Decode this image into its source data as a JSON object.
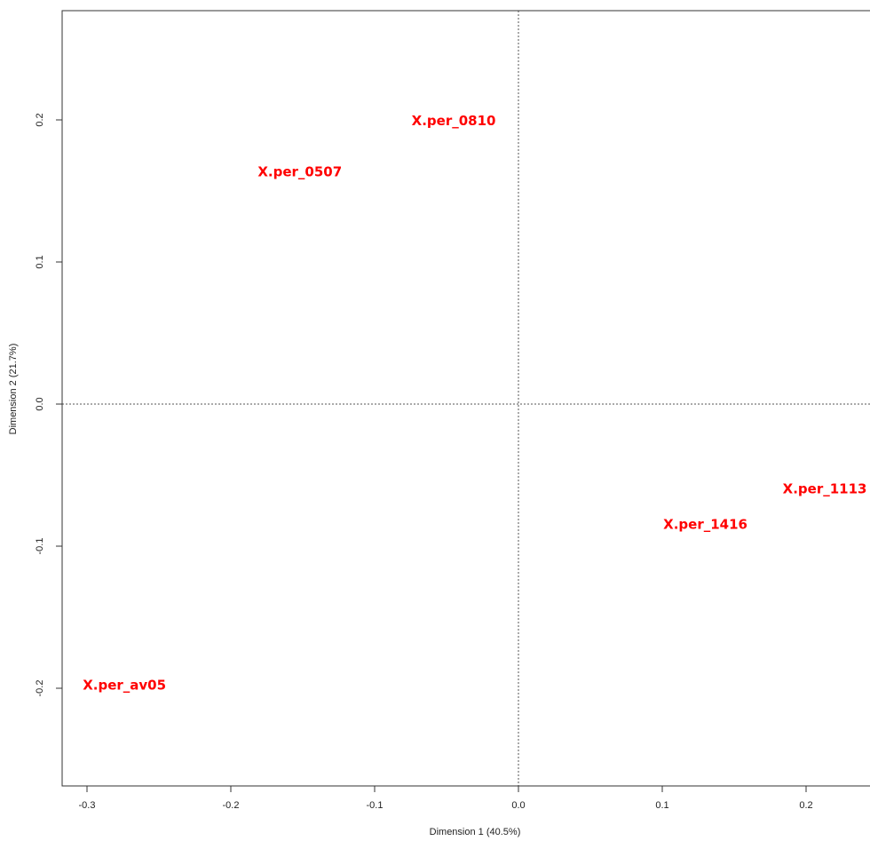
{
  "chart_data": {
    "type": "scatter",
    "title": "",
    "xlabel": "Dimension 1 (40.5%)",
    "ylabel": "Dimension 2 (21.7%)",
    "xlim": [
      -0.32,
      0.245
    ],
    "ylim": [
      -0.268,
      0.276
    ],
    "x_ticks": [
      -0.3,
      -0.2,
      -0.1,
      0.0,
      0.1,
      0.2
    ],
    "x_tick_labels": [
      "-0.3",
      "-0.2",
      "-0.1",
      "0.0",
      "0.1",
      "0.2"
    ],
    "y_ticks": [
      -0.2,
      -0.1,
      0.0,
      0.1,
      0.2
    ],
    "y_tick_labels": [
      "-0.2",
      "-0.1",
      "0.0",
      "0.1",
      "0.2"
    ],
    "reference_lines": {
      "x": 0.0,
      "y": 0.0,
      "style": "dotted"
    },
    "grid": false,
    "label_color": "#ff0000",
    "points": [
      {
        "label": "X.per_0810",
        "x": -0.045,
        "y": 0.199
      },
      {
        "label": "X.per_0507",
        "x": -0.152,
        "y": 0.163
      },
      {
        "label": "X.per_1113",
        "x": 0.213,
        "y": -0.06
      },
      {
        "label": "X.per_1416",
        "x": 0.13,
        "y": -0.085
      },
      {
        "label": "X.per_av05",
        "x": -0.274,
        "y": -0.198
      }
    ]
  }
}
